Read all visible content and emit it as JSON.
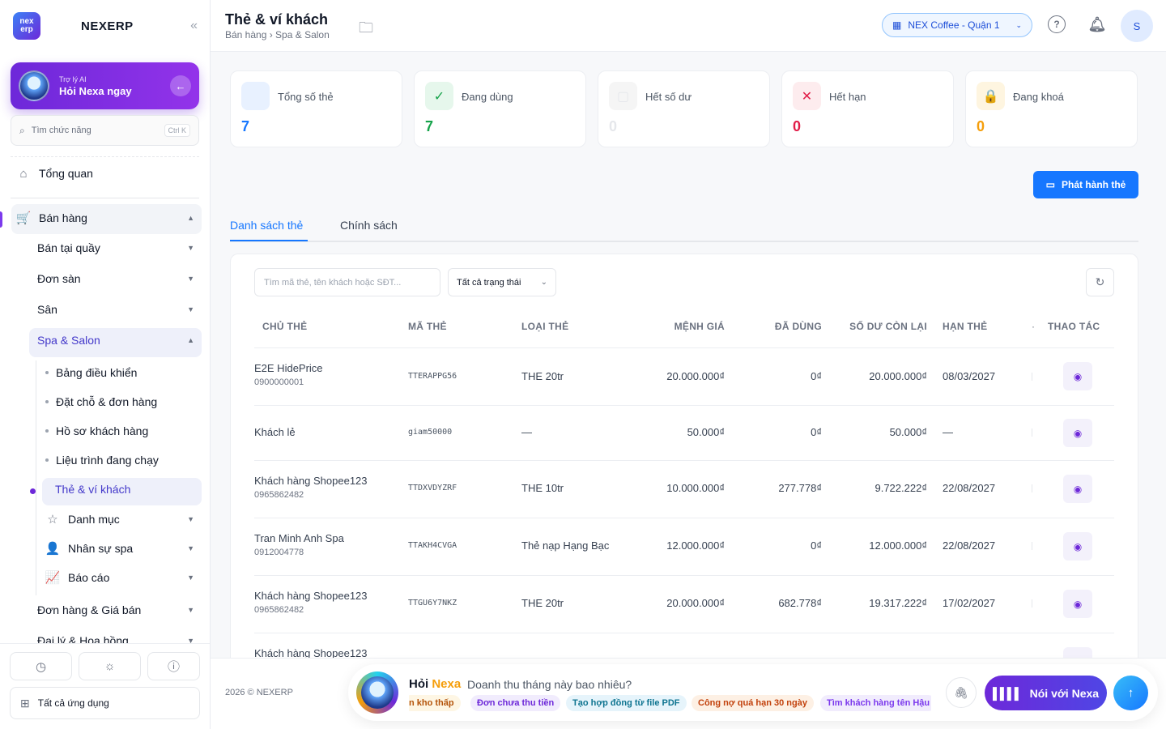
{
  "sidebar": {
    "logo_text": "nex erp",
    "brand": "NEXERP",
    "collapse_icon": "«",
    "ai": {
      "small": "Trợ lý AI",
      "big": "Hỏi Nexa ngay"
    },
    "search_placeholder": "Tìm chức năng",
    "search_shortcut": "Ctrl K",
    "overview": "Tổng quan",
    "groups": {
      "ban_hang": "Bán hàng",
      "ban_tai_quay": "Bán tại quầy",
      "don_san": "Đơn sàn",
      "san": "Sân",
      "spa_salon": "Spa & Salon",
      "spa_items": [
        "Bảng điều khiển",
        "Đặt chỗ & đơn hàng",
        "Hồ sơ khách hàng",
        "Liệu trình đang chạy",
        "Thẻ & ví khách"
      ],
      "danh_muc": "Danh mục",
      "nhan_su_spa": "Nhân sự spa",
      "bao_cao": "Báo cáo",
      "don_hang_gia_ban": "Đơn hàng & Giá bán",
      "dai_ly": "Đại lý & Hoa hồng"
    },
    "all_apps": "Tất cả ứng dụng"
  },
  "header": {
    "title": "Thẻ & ví khách",
    "breadcrumb": "Bán hàng › Spa & Salon",
    "store": "NEX Coffee - Quận 1",
    "avatar": "S"
  },
  "stats": [
    {
      "label": "Tổng số thẻ",
      "value": "7",
      "color": "#1677ff",
      "icon_bg": "#e8f1ff",
      "icon": ""
    },
    {
      "label": "Đang dùng",
      "value": "7",
      "color": "#16a34a",
      "icon_bg": "#e6f7ec",
      "icon": "✓"
    },
    {
      "label": "Hết số dư",
      "value": "0",
      "color": "#e5e7eb",
      "icon_bg": "#f5f5f5",
      "icon": "▢"
    },
    {
      "label": "Hết hạn",
      "value": "0",
      "color": "#e11d48",
      "icon_bg": "#fdecee",
      "icon": "✕"
    },
    {
      "label": "Đang khoá",
      "value": "0",
      "color": "#f59e0b",
      "icon_bg": "#fef5e0",
      "icon": "🔒"
    }
  ],
  "issue_button": "Phát hành thẻ",
  "tabs": [
    "Danh sách thẻ",
    "Chính sách"
  ],
  "filters": {
    "search_placeholder": "Tìm mã thẻ, tên khách hoặc SĐT...",
    "status": "Tất cả trạng thái"
  },
  "table": {
    "columns": [
      "CHỦ THẺ",
      "MÃ THẺ",
      "LOẠI THẺ",
      "MỆNH GIÁ",
      "ĐÃ DÙNG",
      "SỐ DƯ CÒN LẠI",
      "HẠN THẺ",
      "THAO TÁC"
    ],
    "rows": [
      {
        "owner": "E2E HidePrice",
        "phone": "0900000001",
        "code": "TTERAPPG56",
        "type": "THE 20tr",
        "value": "20.000.000₫",
        "used": "0₫",
        "balance": "20.000.000₫",
        "expiry": "08/03/2027"
      },
      {
        "owner": "Khách lẻ",
        "phone": "",
        "code": "giam50000",
        "type": "—",
        "value": "50.000₫",
        "used": "0₫",
        "balance": "50.000₫",
        "expiry": "—"
      },
      {
        "owner": "Khách hàng Shopee123",
        "phone": "0965862482",
        "code": "TTDXVDYZRF",
        "type": "THE 10tr",
        "value": "10.000.000₫",
        "used": "277.778₫",
        "balance": "9.722.222₫",
        "expiry": "22/08/2027"
      },
      {
        "owner": "Tran Minh Anh Spa",
        "phone": "0912004778",
        "code": "TTAKH4CVGA",
        "type": "Thẻ nạp Hạng Bạc",
        "value": "12.000.000₫",
        "used": "0₫",
        "balance": "12.000.000₫",
        "expiry": "22/08/2027"
      },
      {
        "owner": "Khách hàng Shopee123",
        "phone": "0965862482",
        "code": "TTGU6Y7NKZ",
        "type": "THE 20tr",
        "value": "20.000.000₫",
        "used": "682.778₫",
        "balance": "19.317.222₫",
        "expiry": "17/02/2027"
      },
      {
        "owner": "Khách hàng Shopee123",
        "phone": "",
        "code": "",
        "type": "",
        "value": "",
        "used": "",
        "balance": "",
        "expiry": ""
      }
    ]
  },
  "footer": {
    "copyright": "2026 © NEXERP"
  },
  "chat": {
    "ask": "Hỏi",
    "nexa": "Nexa",
    "prompt": "Doanh thu tháng này bao nhiêu?",
    "chips": [
      {
        "text": "n kho thấp",
        "bg": "#fef6e4",
        "fg": "#b45309"
      },
      {
        "text": "Đơn chưa thu tiền",
        "bg": "#f1ecfd",
        "fg": "#6d28d9"
      },
      {
        "text": "Tạo hợp đồng từ file PDF",
        "bg": "#e6f4fb",
        "fg": "#0e7490"
      },
      {
        "text": "Công nợ quá hạn 30 ngày",
        "bg": "#fdf0e4",
        "fg": "#c2410c"
      },
      {
        "text": "Tìm khách hàng tên Hậu",
        "bg": "#f1ecfd",
        "fg": "#7c3aed"
      }
    ],
    "talk": "Nói với Nexa"
  }
}
